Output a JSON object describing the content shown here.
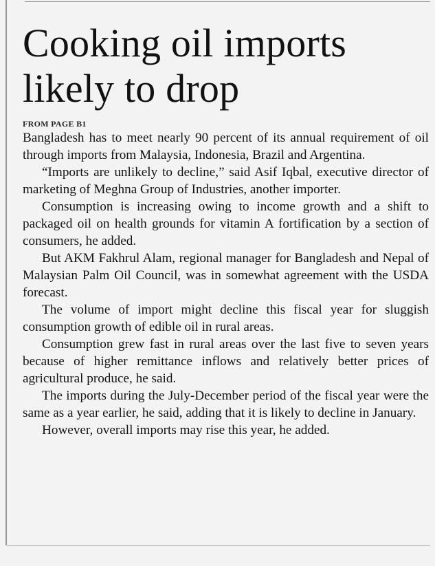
{
  "article": {
    "headline": "Cooking oil imports likely to drop",
    "dateline": "FROM PAGE B1",
    "paragraphs": [
      "Bangladesh has to meet nearly 90 percent of its annual requirement of oil through imports from Malaysia, Indonesia, Brazil and Argentina.",
      "“Imports are unlikely to decline,” said Asif Iqbal, execu­tive director of marketing of Meghna Group of Industries, another importer.",
      "Consumption is increasing owing to income growth and a shift to packaged oil on health grounds for vitamin A fortification by a section of consumers, he added.",
      "But AKM Fakhrul Alam, regional manager for Bangladesh and Nepal of Malaysian Palm Oil Council, was in somewhat agreement with the USDA forecast.",
      "The volume of import might decline this fiscal year for sluggish consumption growth of edible oil in rural areas.",
      "Consumption grew fast in rural areas over the last five to seven years because of higher remittance inflows and rela­tively better prices of agricultural produce, he said.",
      "The imports during the July-December period of the fiscal year were the same as a year earlier, he said, adding that it is likely to decline in January.",
      "However, overall imports may rise this year, he added."
    ]
  }
}
